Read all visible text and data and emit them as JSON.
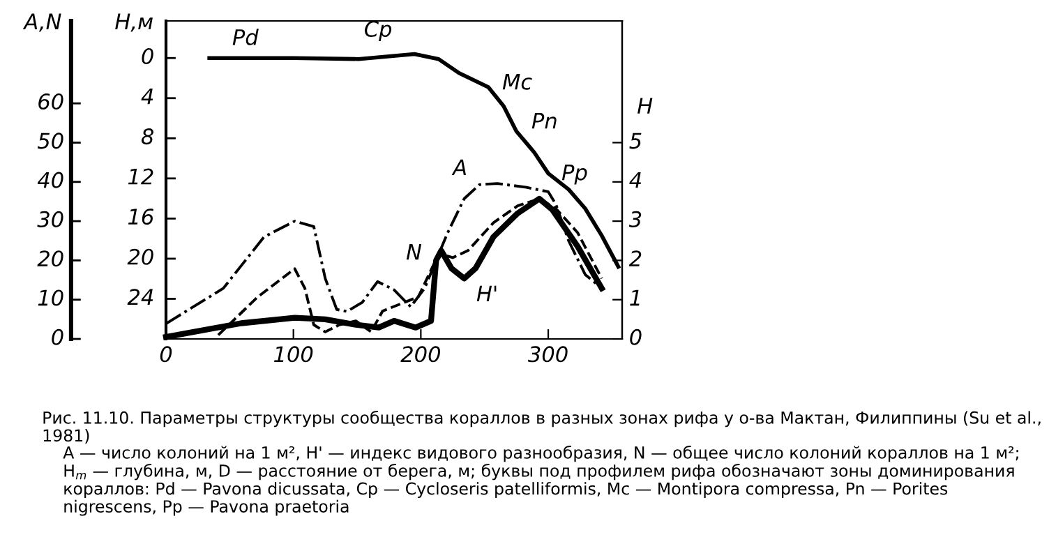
{
  "chart_data": {
    "type": "line",
    "ylabel": "A,N",
    "y2label": "H",
    "y3label": "H,м",
    "xlim": [
      0,
      358
    ],
    "xticks": [
      0,
      100,
      200,
      300
    ],
    "ylim": [
      0,
      81
    ],
    "yticks": [
      0,
      10,
      20,
      30,
      40,
      50,
      60
    ],
    "y2lim": [
      0,
      8.1
    ],
    "y2ticks": [
      0,
      1,
      2,
      3,
      4,
      5
    ],
    "y3lim": [
      28,
      -3.7
    ],
    "y3ticks": [
      0,
      4,
      8,
      12,
      16,
      20,
      24
    ],
    "grid": false,
    "legend": false,
    "marker": "none",
    "series": [
      {
        "name": "A",
        "color": "#000000",
        "line_style": "dashdot",
        "x": [
          0,
          45,
          77,
          101,
          116,
          125,
          134,
          142,
          154,
          166,
          179,
          192,
          203,
          212,
          221,
          234,
          246,
          260,
          283,
          300,
          306,
          316,
          329,
          342
        ],
        "values": [
          3.9,
          12.9,
          26,
          30,
          28.6,
          15.4,
          7.5,
          7,
          9.3,
          14.6,
          12.5,
          8.2,
          12.9,
          20,
          27,
          35.7,
          39.3,
          39.6,
          38.6,
          37.5,
          34.3,
          25,
          16.4,
          12.9
        ]
      },
      {
        "name": "N",
        "color": "#000000",
        "line_style": "dashed",
        "x": [
          41,
          72,
          91,
          101,
          109,
          116,
          125,
          136,
          149,
          161,
          170,
          187,
          198,
          210,
          214,
          225,
          237,
          257,
          276,
          293,
          306,
          323,
          342
        ],
        "values": [
          1,
          10.7,
          15.4,
          17.9,
          12.9,
          3.6,
          1.8,
          3.6,
          4.6,
          1.8,
          7.1,
          9.3,
          10.7,
          18.9,
          21.8,
          20.7,
          22.5,
          29.6,
          33.9,
          35.7,
          33.2,
          27.1,
          15.4
        ]
      },
      {
        "name": "H'",
        "color": "#000000",
        "line_style": "solid",
        "axis": "y2",
        "x": [
          0,
          59,
          101,
          125,
          149,
          167,
          179,
          196,
          208,
          212,
          216,
          224,
          234,
          243,
          257,
          276,
          293,
          303,
          323,
          342
        ],
        "values": [
          0.05,
          0.4,
          0.54,
          0.5,
          0.36,
          0.29,
          0.46,
          0.29,
          0.46,
          2.0,
          2.25,
          1.8,
          1.54,
          1.8,
          2.6,
          3.2,
          3.57,
          3.3,
          2.36,
          1.29
        ]
      },
      {
        "color": "#000000",
        "line_style": "solid",
        "axis": "y3",
        "x": [
          34,
          100,
          151,
          195,
          214,
          230,
          253,
          265,
          275,
          289,
          300,
          316,
          329,
          342,
          355
        ],
        "values": [
          0,
          0,
          0.1,
          -0.4,
          0.1,
          1.5,
          2.9,
          4.8,
          7.3,
          9.4,
          11.5,
          13.1,
          15,
          17.7,
          20.8
        ]
      }
    ],
    "annotations": [
      "Pd",
      "Cp",
      "Mc",
      "Pn",
      "Pp",
      "Рис. 11.10. Параметры структуры сообщества кораллов в разных зонах рифа у о-ва Мактан, Филиппины (Su et al., 1981)",
      "A — число колоний на 1 м², H' — индекс видового разнообразия, N — общее число колоний кораллов на 1 м²; H$_{m}$ — глубина, м, D — расстояние от берега, м; буквы под профилем рифа обозначают зоны доминирования кораллов: Pd — Pavona dicussata, Cp — Cycloseris patelliformis, Mc — Montipora compressa, Pn — Porites nigrescens, Pp — Pavona praetoria"
    ]
  }
}
